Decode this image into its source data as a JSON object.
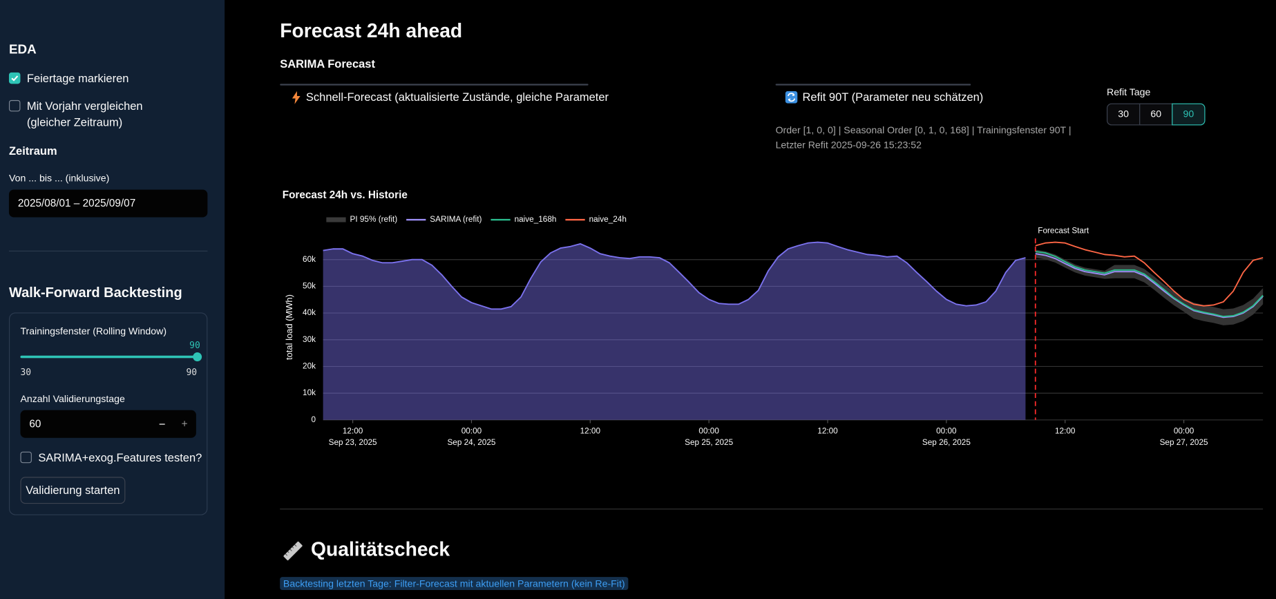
{
  "sidebar": {
    "eda_title": "EDA",
    "holidays": {
      "label": "Feiertage markieren",
      "checked": true
    },
    "prev_year": {
      "label": "Mit Vorjahr vergleichen (gleicher Zeitraum)",
      "checked": false
    },
    "period_title": "Zeitraum",
    "date_label": "Von ... bis ... (inklusive)",
    "date_value": "2025/08/01 – 2025/09/07",
    "backtest_title": "Walk-Forward Backtesting",
    "training_label": "Trainingsfenster (Rolling Window)",
    "slider": {
      "value": 90,
      "min": 30,
      "max": 90
    },
    "validation_label": "Anzahl Validierungstage",
    "validation_value": 60,
    "minus": "−",
    "plus": "+",
    "exog": {
      "label": "SARIMA+exog.Features testen?",
      "checked": false
    },
    "start_button": "Validierung starten"
  },
  "main": {
    "title": "Forecast 24h ahead",
    "subtitle": "SARIMA Forecast",
    "quick_button": "Schnell-Forecast (aktualisierte Zustände, gleiche Parameter",
    "refit_button": "Refit 90T (Parameter neu schätzen)",
    "model_info": "Order [1, 0, 0] | Seasonal Order [0, 1, 0, 168] | Trainingsfenster 90T | Letzter Refit 2025-09-26 15:23:52",
    "refit_days_label": "Refit Tage",
    "refit_days": [
      30,
      60,
      90
    ],
    "refit_days_selected": 90,
    "quality_title": "Qualitätscheck",
    "backtest_note": "Backtesting letzten Tage: Filter-Forecast mit aktuellen Parametern (kein Re-Fit)"
  },
  "chart_data": {
    "type": "line",
    "title": "Forecast 24h vs. Historie",
    "ylabel": "total load (MWh)",
    "grid": true,
    "x": [
      "2025-09-23 09:00",
      "2025-09-23 10:00",
      "2025-09-23 11:00",
      "2025-09-23 12:00",
      "2025-09-23 13:00",
      "2025-09-23 14:00",
      "2025-09-23 15:00",
      "2025-09-23 16:00",
      "2025-09-23 17:00",
      "2025-09-23 18:00",
      "2025-09-23 19:00",
      "2025-09-23 20:00",
      "2025-09-23 21:00",
      "2025-09-23 22:00",
      "2025-09-23 23:00",
      "2025-09-24 00:00",
      "2025-09-24 01:00",
      "2025-09-24 02:00",
      "2025-09-24 03:00",
      "2025-09-24 04:00",
      "2025-09-24 05:00",
      "2025-09-24 06:00",
      "2025-09-24 07:00",
      "2025-09-24 08:00",
      "2025-09-24 09:00",
      "2025-09-24 10:00",
      "2025-09-24 11:00",
      "2025-09-24 12:00",
      "2025-09-24 13:00",
      "2025-09-24 14:00",
      "2025-09-24 15:00",
      "2025-09-24 16:00",
      "2025-09-24 17:00",
      "2025-09-24 18:00",
      "2025-09-24 19:00",
      "2025-09-24 20:00",
      "2025-09-24 21:00",
      "2025-09-24 22:00",
      "2025-09-24 23:00",
      "2025-09-25 00:00",
      "2025-09-25 01:00",
      "2025-09-25 02:00",
      "2025-09-25 03:00",
      "2025-09-25 04:00",
      "2025-09-25 05:00",
      "2025-09-25 06:00",
      "2025-09-25 07:00",
      "2025-09-25 08:00",
      "2025-09-25 09:00",
      "2025-09-25 10:00",
      "2025-09-25 11:00",
      "2025-09-25 12:00",
      "2025-09-25 13:00",
      "2025-09-25 14:00",
      "2025-09-25 15:00",
      "2025-09-25 16:00",
      "2025-09-25 17:00",
      "2025-09-25 18:00",
      "2025-09-25 19:00",
      "2025-09-25 20:00",
      "2025-09-25 21:00",
      "2025-09-25 22:00",
      "2025-09-25 23:00",
      "2025-09-26 00:00",
      "2025-09-26 01:00",
      "2025-09-26 02:00",
      "2025-09-26 03:00",
      "2025-09-26 04:00",
      "2025-09-26 05:00",
      "2025-09-26 06:00",
      "2025-09-26 07:00",
      "2025-09-26 08:00",
      "2025-09-26 09:00",
      "2025-09-26 10:00",
      "2025-09-26 11:00",
      "2025-09-26 12:00",
      "2025-09-26 13:00",
      "2025-09-26 14:00",
      "2025-09-26 15:00",
      "2025-09-26 16:00",
      "2025-09-26 17:00",
      "2025-09-26 18:00",
      "2025-09-26 19:00",
      "2025-09-26 20:00",
      "2025-09-26 21:00",
      "2025-09-26 22:00",
      "2025-09-26 23:00",
      "2025-09-27 00:00",
      "2025-09-27 01:00",
      "2025-09-27 02:00",
      "2025-09-27 03:00",
      "2025-09-27 04:00",
      "2025-09-27 05:00",
      "2025-09-27 06:00",
      "2025-09-27 07:00",
      "2025-09-27 08:00"
    ],
    "xlim": [
      "2025-09-23 09:00",
      "2025-09-27 08:00"
    ],
    "xticks": [
      {
        "value": "2025-09-23 12:00",
        "label": [
          "12:00",
          "Sep 23, 2025"
        ]
      },
      {
        "value": "2025-09-24 00:00",
        "label": [
          "00:00",
          "Sep 24, 2025"
        ]
      },
      {
        "value": "2025-09-24 12:00",
        "label": "12:00"
      },
      {
        "value": "2025-09-25 00:00",
        "label": [
          "00:00",
          "Sep 25, 2025"
        ]
      },
      {
        "value": "2025-09-25 12:00",
        "label": "12:00"
      },
      {
        "value": "2025-09-26 00:00",
        "label": [
          "00:00",
          "Sep 26, 2025"
        ]
      },
      {
        "value": "2025-09-26 12:00",
        "label": "12:00"
      },
      {
        "value": "2025-09-27 00:00",
        "label": [
          "00:00",
          "Sep 27, 2025"
        ]
      }
    ],
    "ylim": [
      0,
      68000
    ],
    "yticks": [
      0,
      {
        "value": 10000,
        "label": "10k"
      },
      {
        "value": 20000,
        "label": "20k"
      },
      {
        "value": 30000,
        "label": "30k"
      },
      {
        "value": 40000,
        "label": "40k"
      },
      {
        "value": 50000,
        "label": "50k"
      },
      {
        "value": 60000,
        "label": "60k"
      }
    ],
    "forecast_start": "2025-09-26 09:00",
    "forecast_start_label": "Forecast Start",
    "forecast_start_color": "#ff2b2b",
    "series": [
      {
        "color": "#7b72ee",
        "fill": true,
        "values": [
          63400,
          64000,
          64000,
          62200,
          61300,
          59700,
          58800,
          58800,
          59400,
          60000,
          60000,
          57900,
          54300,
          50000,
          46000,
          43900,
          42700,
          41500,
          41500,
          42400,
          46000,
          53000,
          59100,
          62500,
          64300,
          64900,
          65900,
          64300,
          62200,
          61300,
          60700,
          60400,
          61000,
          61000,
          60700,
          58800,
          55200,
          51500,
          47600,
          45100,
          43600,
          43300,
          43300,
          45100,
          48500,
          55800,
          61000,
          64000,
          65200,
          66200,
          66500,
          66200,
          64900,
          63700,
          62800,
          61900,
          61600,
          61000,
          61300,
          58800,
          55200,
          51800,
          48200,
          45100,
          43300,
          42700,
          43000,
          44200,
          48200,
          55200,
          59700,
          60700,
          null,
          null,
          null,
          null,
          null,
          null,
          null,
          null,
          null,
          null,
          null,
          null,
          null,
          null,
          null,
          null,
          null,
          null,
          null,
          null,
          null,
          null,
          null,
          null
        ]
      },
      {
        "name": "PI 95% (refit)",
        "color": "#3a3a3a",
        "lower": [
          null,
          null,
          null,
          null,
          null,
          null,
          null,
          null,
          null,
          null,
          null,
          null,
          null,
          null,
          null,
          null,
          null,
          null,
          null,
          null,
          null,
          null,
          null,
          null,
          null,
          null,
          null,
          null,
          null,
          null,
          null,
          null,
          null,
          null,
          null,
          null,
          null,
          null,
          null,
          null,
          null,
          null,
          null,
          null,
          null,
          null,
          null,
          null,
          null,
          null,
          null,
          null,
          null,
          null,
          null,
          null,
          null,
          null,
          null,
          null,
          null,
          null,
          null,
          null,
          null,
          null,
          null,
          null,
          null,
          null,
          null,
          null,
          60700,
          60100,
          58900,
          57000,
          55200,
          54000,
          53400,
          52800,
          53000,
          53000,
          53000,
          51500,
          48700,
          45700,
          42900,
          40500,
          37900,
          37000,
          36300,
          35400,
          35700,
          37000,
          39400,
          43300
        ],
        "upper": [
          null,
          null,
          null,
          null,
          null,
          null,
          null,
          null,
          null,
          null,
          null,
          null,
          null,
          null,
          null,
          null,
          null,
          null,
          null,
          null,
          null,
          null,
          null,
          null,
          null,
          null,
          null,
          null,
          null,
          null,
          null,
          null,
          null,
          null,
          null,
          null,
          null,
          null,
          null,
          null,
          null,
          null,
          null,
          null,
          null,
          null,
          null,
          null,
          null,
          null,
          null,
          null,
          null,
          null,
          null,
          null,
          null,
          null,
          null,
          null,
          null,
          null,
          null,
          null,
          null,
          null,
          null,
          null,
          null,
          null,
          null,
          null,
          63700,
          63100,
          61900,
          60000,
          58200,
          57000,
          56400,
          55800,
          58000,
          58000,
          58000,
          56500,
          53700,
          50700,
          47900,
          45500,
          43900,
          43000,
          42300,
          41400,
          41700,
          43000,
          45400,
          49300
        ]
      },
      {
        "name": "SARIMA (refit)",
        "color": "#9d8ff7",
        "values": [
          null,
          null,
          null,
          null,
          null,
          null,
          null,
          null,
          null,
          null,
          null,
          null,
          null,
          null,
          null,
          null,
          null,
          null,
          null,
          null,
          null,
          null,
          null,
          null,
          null,
          null,
          null,
          null,
          null,
          null,
          null,
          null,
          null,
          null,
          null,
          null,
          null,
          null,
          null,
          null,
          null,
          null,
          null,
          null,
          null,
          null,
          null,
          null,
          null,
          null,
          null,
          null,
          null,
          null,
          null,
          null,
          null,
          null,
          null,
          null,
          null,
          null,
          null,
          null,
          null,
          null,
          null,
          null,
          null,
          null,
          null,
          null,
          62200,
          61600,
          60400,
          58500,
          56700,
          55500,
          54900,
          54300,
          55500,
          55500,
          55500,
          54000,
          51200,
          48200,
          45400,
          43000,
          40900,
          40000,
          39300,
          38400,
          38700,
          40000,
          42400,
          46300
        ]
      },
      {
        "name": "naive_168h",
        "color": "#2bbd8e",
        "values": [
          null,
          null,
          null,
          null,
          null,
          null,
          null,
          null,
          null,
          null,
          null,
          null,
          null,
          null,
          null,
          null,
          null,
          null,
          null,
          null,
          null,
          null,
          null,
          null,
          null,
          null,
          null,
          null,
          null,
          null,
          null,
          null,
          null,
          null,
          null,
          null,
          null,
          null,
          null,
          null,
          null,
          null,
          null,
          null,
          null,
          null,
          null,
          null,
          null,
          null,
          null,
          null,
          null,
          null,
          null,
          null,
          null,
          null,
          null,
          null,
          null,
          null,
          null,
          null,
          null,
          null,
          null,
          null,
          null,
          null,
          null,
          null,
          63000,
          62500,
          61200,
          59200,
          57300,
          56100,
          55500,
          54900,
          56100,
          56100,
          56100,
          54600,
          51800,
          48800,
          45700,
          43300,
          41200,
          40300,
          39600,
          38700,
          39000,
          40300,
          42700,
          46600
        ]
      },
      {
        "name": "naive_24h",
        "color": "#ff6645",
        "values": [
          null,
          null,
          null,
          null,
          null,
          null,
          null,
          null,
          null,
          null,
          null,
          null,
          null,
          null,
          null,
          null,
          null,
          null,
          null,
          null,
          null,
          null,
          null,
          null,
          null,
          null,
          null,
          null,
          null,
          null,
          null,
          null,
          null,
          null,
          null,
          null,
          null,
          null,
          null,
          null,
          null,
          null,
          null,
          null,
          null,
          null,
          null,
          null,
          null,
          null,
          null,
          null,
          null,
          null,
          null,
          null,
          null,
          null,
          null,
          null,
          null,
          null,
          null,
          null,
          null,
          null,
          null,
          null,
          null,
          null,
          null,
          null,
          65200,
          66200,
          66500,
          66200,
          64900,
          63700,
          62800,
          61900,
          61600,
          61000,
          61300,
          58800,
          55200,
          51800,
          48200,
          45100,
          43300,
          42700,
          43000,
          44200,
          48200,
          55200,
          59700,
          60700
        ]
      }
    ]
  }
}
